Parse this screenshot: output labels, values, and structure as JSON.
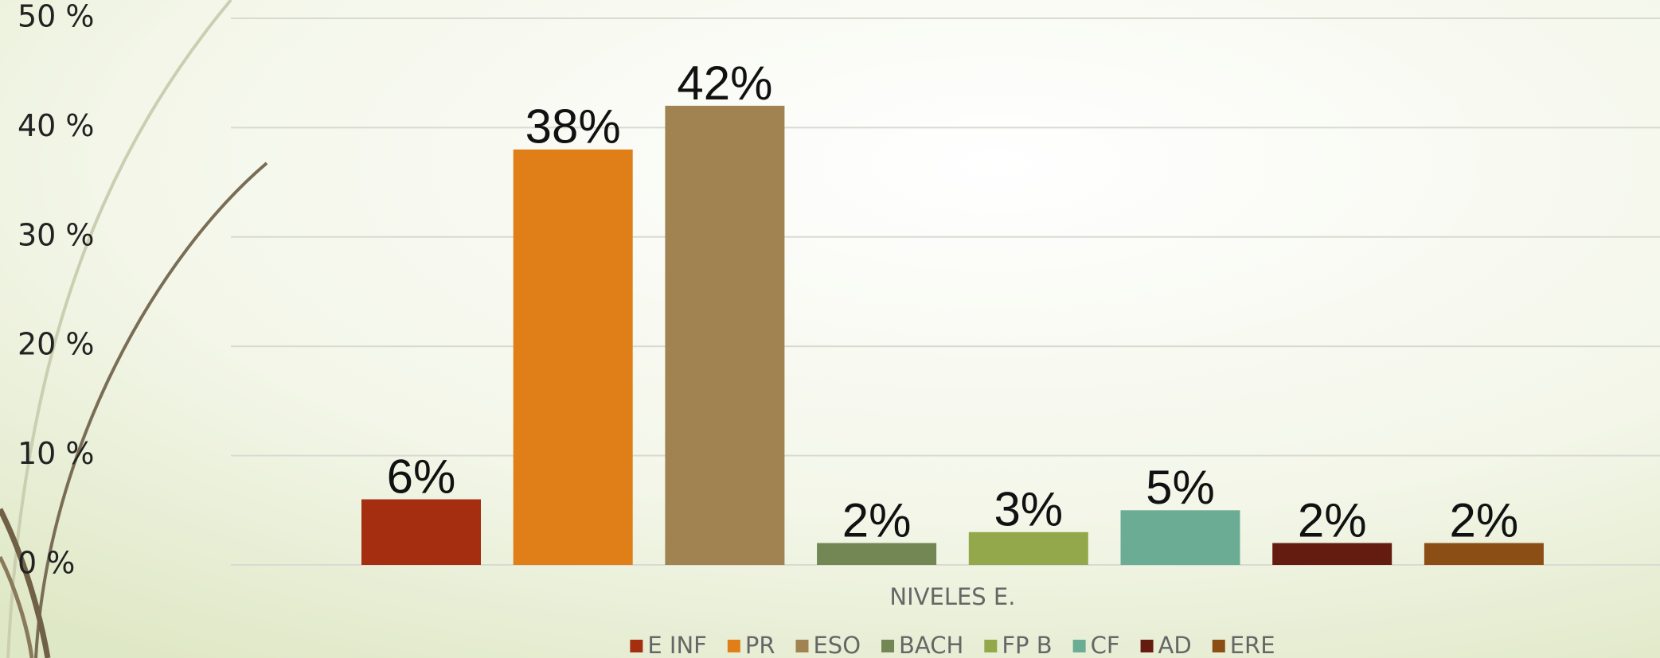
{
  "chart_data": {
    "type": "bar",
    "categories": [
      "NIVELES E."
    ],
    "series": [
      {
        "name": "E INF",
        "color": "#a52e11",
        "values": [
          6
        ],
        "value_labels": [
          "6%"
        ]
      },
      {
        "name": "PR",
        "color": "#e07e18",
        "values": [
          38
        ],
        "value_labels": [
          "38%"
        ]
      },
      {
        "name": "ESO",
        "color": "#a08350",
        "values": [
          42
        ],
        "value_labels": [
          "42%"
        ]
      },
      {
        "name": "BACH",
        "color": "#728754",
        "values": [
          2
        ],
        "value_labels": [
          "2%"
        ]
      },
      {
        "name": "FP B",
        "color": "#93a84b",
        "values": [
          3
        ],
        "value_labels": [
          "3%"
        ]
      },
      {
        "name": "CF",
        "color": "#6aad94",
        "values": [
          5
        ],
        "value_labels": [
          "5%"
        ]
      },
      {
        "name": "AD",
        "color": "#641c10",
        "values": [
          2
        ],
        "value_labels": [
          "2%"
        ]
      },
      {
        "name": "ERE",
        "color": "#8b4e14",
        "values": [
          2
        ],
        "value_labels": [
          "2%"
        ]
      }
    ],
    "ylim": [
      0,
      50
    ],
    "yticks": [
      {
        "value": 0,
        "label": "0  %"
      },
      {
        "value": 10,
        "label": "10 %"
      },
      {
        "value": 20,
        "label": "20 %"
      },
      {
        "value": 30,
        "label": "30 %"
      },
      {
        "value": 40,
        "label": "40 %"
      },
      {
        "value": 50,
        "label": "50 %"
      }
    ],
    "grid": true,
    "legend": "bottom"
  }
}
